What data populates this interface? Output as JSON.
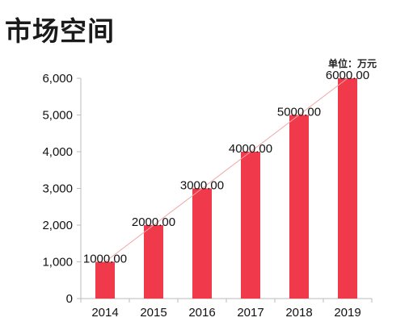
{
  "page": {
    "title": "市场空间"
  },
  "chart_data": {
    "type": "bar",
    "categories": [
      "2014",
      "2015",
      "2016",
      "2017",
      "2018",
      "2019"
    ],
    "values": [
      1000,
      2000,
      3000,
      4000,
      5000,
      6000
    ],
    "data_labels": [
      "1000.00",
      "2000.00",
      "3000.00",
      "4000.00",
      "5000.00",
      "6000.00"
    ],
    "y_ticks": [
      0,
      1000,
      2000,
      3000,
      4000,
      5000,
      6000
    ],
    "y_tick_labels": [
      "0",
      "1,000",
      "2,000",
      "3,000",
      "4,000",
      "5,000",
      "6,000"
    ],
    "unit": "单位：万元",
    "ylim": [
      0,
      6000
    ],
    "grid": false,
    "trendline": true,
    "colors": {
      "bar": "#f0394a",
      "trend": "#f2a6a6",
      "axis": "#bbbbbb"
    }
  }
}
